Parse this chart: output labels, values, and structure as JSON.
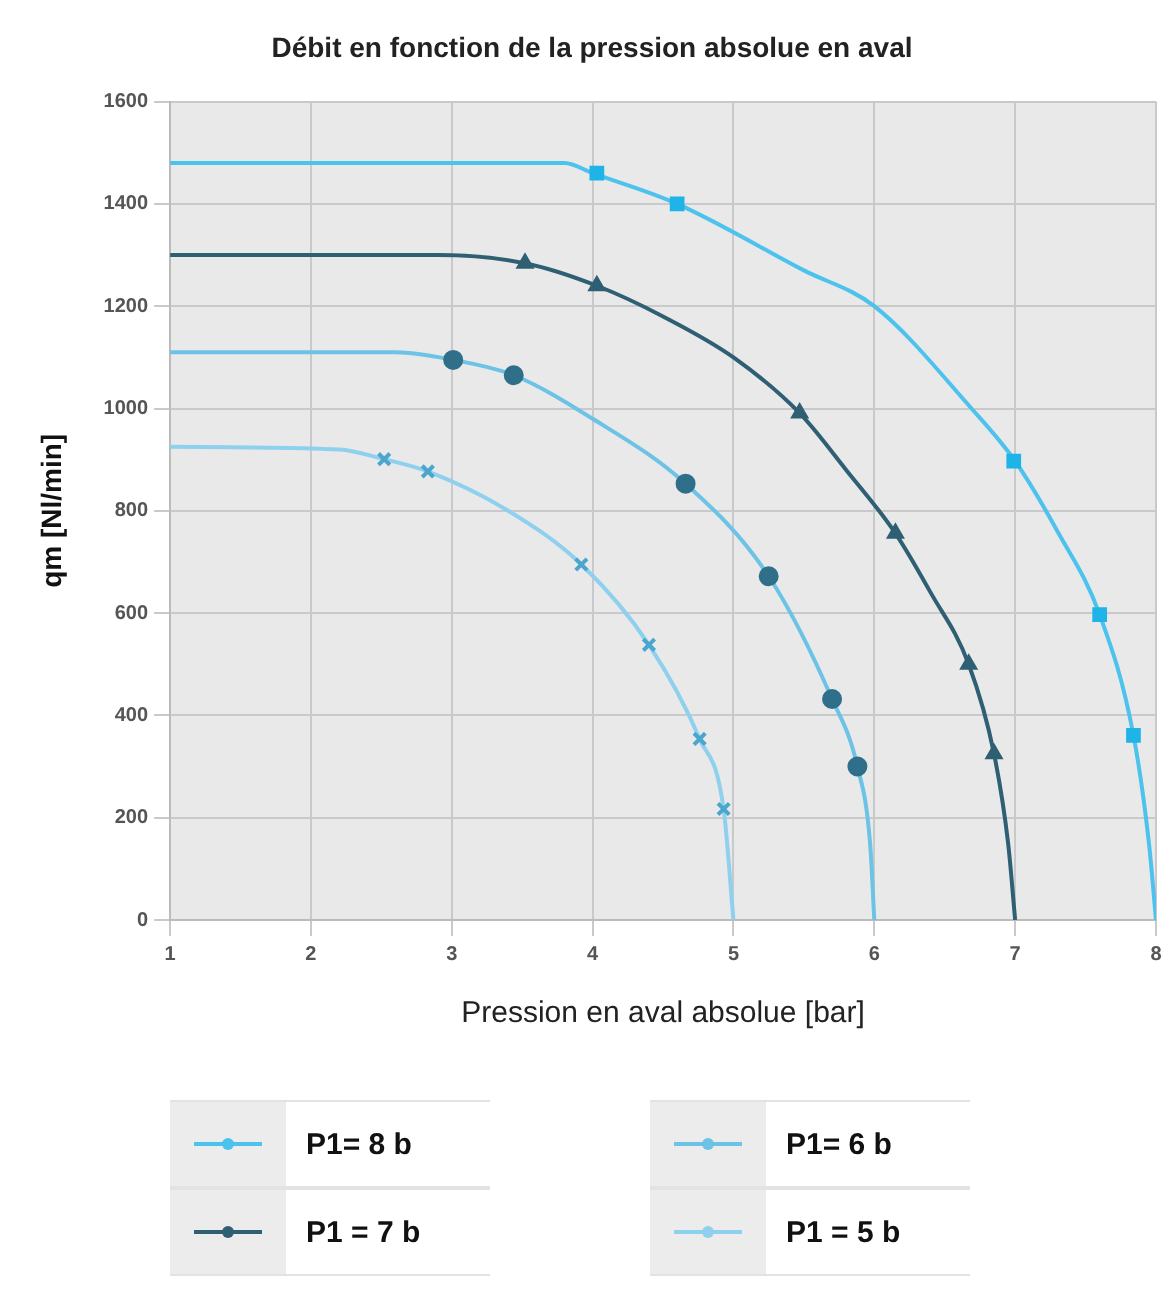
{
  "chart_data": {
    "type": "line",
    "title": "Débit en fonction de la pression absolue en aval",
    "xlabel": "Pression en aval absolue [bar]",
    "ylabel": "qm [Nl/min]",
    "xlim": [
      1,
      8
    ],
    "xticks": [
      1,
      2,
      3,
      4,
      5,
      6,
      7,
      8
    ],
    "ylim": [
      0,
      1600
    ],
    "yticks": [
      0,
      200,
      400,
      600,
      800,
      1000,
      1200,
      1400,
      1600
    ],
    "grid": true,
    "legend": "bottom",
    "marker": "none",
    "line_style": "solid",
    "series": [
      {
        "name": "P1= 8 b",
        "color": "#4cc2ec",
        "x": [
          1,
          3.8,
          4,
          4.6,
          5.5,
          6,
          6.69,
          7,
          7.3,
          7.6,
          7.84,
          7.95,
          8
        ],
        "values": [
          1480,
          1480,
          1460,
          1400,
          1270,
          1200,
          1000,
          897,
          760,
          597,
          361,
          150,
          0
        ]
      },
      {
        "name": "P1 = 7 b",
        "color": "#2f5f73",
        "x": [
          1,
          2.9,
          3.52,
          4.03,
          4.5,
          5,
          5.47,
          5.8,
          6.15,
          6.4,
          6.67,
          6.85,
          6.95,
          7
        ],
        "values": [
          1300,
          1300,
          1284,
          1240,
          1180,
          1100,
          991,
          880,
          756,
          640,
          500,
          325,
          150,
          0
        ]
      },
      {
        "name": "P1= 6 b",
        "color": "#6cc3e6",
        "x": [
          1,
          2.6,
          3.01,
          3.44,
          4,
          4.66,
          5.25,
          5.7,
          5.88,
          5.97,
          6
        ],
        "values": [
          1110,
          1110,
          1095,
          1065,
          980,
          853,
          672,
          432,
          300,
          150,
          0
        ]
      },
      {
        "name": "P1 = 5 b",
        "color": "#8fd0ee",
        "x": [
          1,
          2.2,
          2.52,
          2.83,
          3.4,
          3.92,
          4.4,
          4.76,
          4.93,
          5
        ],
        "values": [
          925,
          920,
          901,
          877,
          800,
          695,
          538,
          354,
          217,
          0
        ]
      },
      {
        "type": "scatter",
        "marker": "square",
        "color": "#1eb4e8",
        "x": [
          4.03,
          4.6,
          6.99,
          7.6,
          7.84
        ],
        "values": [
          1460,
          1400,
          897,
          597,
          361
        ]
      },
      {
        "type": "scatter",
        "marker": "triangle",
        "color": "#2f5f73",
        "x": [
          3.52,
          4.03,
          5.47,
          6.15,
          6.67,
          6.85
        ],
        "values": [
          1284,
          1240,
          991,
          756,
          500,
          325
        ]
      },
      {
        "type": "scatter",
        "marker": "circle",
        "color": "#2f6f8a",
        "x": [
          3.01,
          3.44,
          4.66,
          5.25,
          5.7,
          5.88
        ],
        "values": [
          1095,
          1065,
          853,
          672,
          432,
          300
        ]
      },
      {
        "type": "scatter",
        "marker": "cross",
        "color": "#4aa6cc",
        "x": [
          2.52,
          2.83,
          3.92,
          4.4,
          4.76,
          4.93
        ],
        "values": [
          901,
          877,
          695,
          538,
          354,
          217
        ]
      }
    ]
  }
}
